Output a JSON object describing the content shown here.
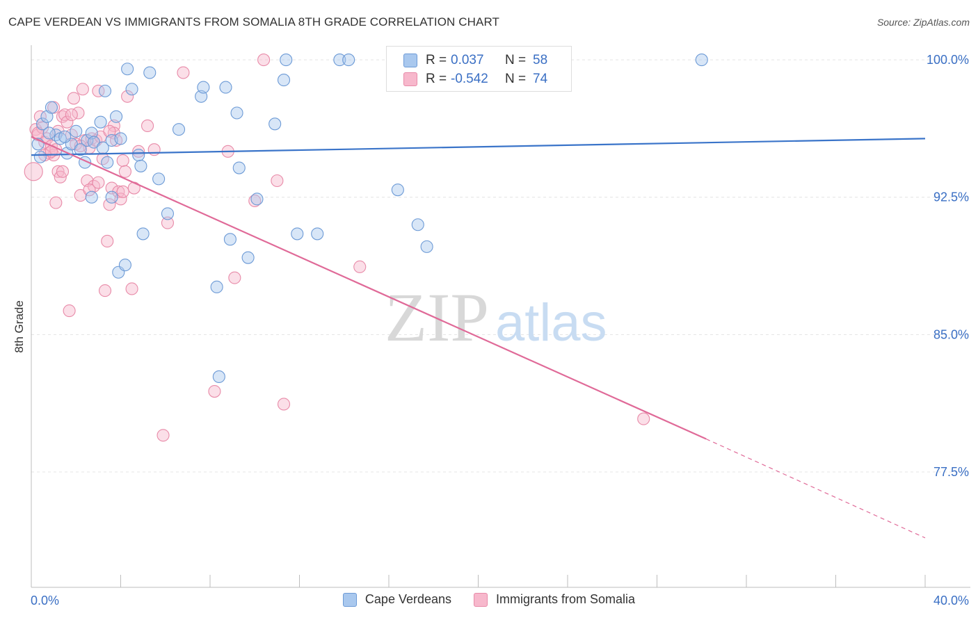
{
  "header": {
    "title": "CAPE VERDEAN VS IMMIGRANTS FROM SOMALIA 8TH GRADE CORRELATION CHART",
    "source": "Source: ZipAtlas.com"
  },
  "legend_box": {
    "rows": [
      {
        "r_label": "R =",
        "r_value": "0.037",
        "n_label": "N =",
        "n_value": "58"
      },
      {
        "r_label": "R =",
        "r_value": "-0.542",
        "n_label": "N =",
        "n_value": "74"
      }
    ]
  },
  "watermark": {
    "zip": "ZIP",
    "atlas": "atlas"
  },
  "colors": {
    "blue_fill": "#a9c8ee",
    "blue_stroke": "#6c9ad6",
    "blue_line": "#3a74c9",
    "pink_fill": "#f7b8cc",
    "pink_stroke": "#e88aa8",
    "pink_line": "#e06a98",
    "tick_label": "#3a6fc4",
    "grid": "#e4e4e4"
  },
  "chart_data": {
    "type": "scatter",
    "title": "CAPE VERDEAN VS IMMIGRANTS FROM SOMALIA 8TH GRADE CORRELATION CHART",
    "xlabel": "",
    "ylabel": "8th Grade",
    "xlim": [
      0,
      40
    ],
    "ylim": [
      71.2,
      100.8
    ],
    "x_tick_labels": [
      "0.0%",
      "40.0%"
    ],
    "y_ticks": [
      77.5,
      85.0,
      92.5,
      100.0
    ],
    "y_tick_labels": [
      "77.5%",
      "85.0%",
      "92.5%",
      "100.0%"
    ],
    "grid": true,
    "legend_position": "bottom",
    "series": [
      {
        "name": "Cape Verdeans",
        "color": "blue",
        "r": 0.037,
        "n": 58,
        "trend": {
          "x0": 0,
          "y0": 94.8,
          "x1": 40,
          "y1": 95.7
        },
        "points": [
          [
            0.3,
            95.4
          ],
          [
            0.5,
            96.5
          ],
          [
            0.7,
            96.9
          ],
          [
            0.9,
            97.4
          ],
          [
            1.1,
            95.9
          ],
          [
            1.3,
            95.7
          ],
          [
            1.6,
            94.9
          ],
          [
            1.8,
            95.4
          ],
          [
            2.0,
            96.1
          ],
          [
            2.2,
            95.1
          ],
          [
            2.4,
            94.4
          ],
          [
            2.5,
            95.6
          ],
          [
            2.7,
            96.0
          ],
          [
            2.7,
            92.5
          ],
          [
            2.8,
            95.5
          ],
          [
            3.1,
            96.6
          ],
          [
            3.2,
            95.2
          ],
          [
            3.3,
            98.3
          ],
          [
            3.4,
            94.4
          ],
          [
            3.6,
            95.6
          ],
          [
            3.6,
            92.5
          ],
          [
            3.8,
            96.9
          ],
          [
            3.9,
            88.4
          ],
          [
            4.0,
            95.7
          ],
          [
            4.2,
            88.8
          ],
          [
            4.3,
            99.5
          ],
          [
            4.5,
            98.4
          ],
          [
            4.8,
            94.8
          ],
          [
            4.9,
            94.2
          ],
          [
            5.0,
            90.5
          ],
          [
            5.3,
            99.3
          ],
          [
            5.7,
            93.5
          ],
          [
            6.1,
            91.6
          ],
          [
            6.6,
            96.2
          ],
          [
            7.6,
            98.0
          ],
          [
            7.7,
            98.5
          ],
          [
            8.3,
            87.6
          ],
          [
            8.4,
            82.7
          ],
          [
            8.7,
            98.5
          ],
          [
            8.9,
            90.2
          ],
          [
            9.2,
            97.1
          ],
          [
            9.3,
            94.1
          ],
          [
            9.7,
            89.2
          ],
          [
            10.1,
            92.4
          ],
          [
            10.9,
            96.5
          ],
          [
            11.3,
            98.9
          ],
          [
            11.4,
            100.0
          ],
          [
            11.9,
            90.5
          ],
          [
            12.8,
            90.5
          ],
          [
            13.8,
            100.0
          ],
          [
            14.2,
            100.0
          ],
          [
            16.4,
            92.9
          ],
          [
            17.3,
            91.0
          ],
          [
            17.7,
            89.8
          ],
          [
            30.0,
            100.0
          ],
          [
            0.4,
            94.7
          ],
          [
            0.8,
            96.0
          ],
          [
            1.5,
            95.8
          ]
        ]
      },
      {
        "name": "Immigrants from Somalia",
        "color": "pink",
        "r": -0.542,
        "n": 74,
        "trend": {
          "x0": 0,
          "y0": 95.8,
          "x1": 30.2,
          "y1": 79.3,
          "dash_x1": 40,
          "dash_y1": 73.9
        },
        "points": [
          [
            0.1,
            93.9
          ],
          [
            0.2,
            96.2
          ],
          [
            0.3,
            95.9
          ],
          [
            0.4,
            96.9
          ],
          [
            0.5,
            96.3
          ],
          [
            0.6,
            95.5
          ],
          [
            0.7,
            95.7
          ],
          [
            0.8,
            94.9
          ],
          [
            0.9,
            95.3
          ],
          [
            1.0,
            97.4
          ],
          [
            1.0,
            94.8
          ],
          [
            1.1,
            95.1
          ],
          [
            1.1,
            92.2
          ],
          [
            1.2,
            93.9
          ],
          [
            1.3,
            93.6
          ],
          [
            1.4,
            96.9
          ],
          [
            1.4,
            93.9
          ],
          [
            1.5,
            97.0
          ],
          [
            1.6,
            96.6
          ],
          [
            1.7,
            86.3
          ],
          [
            1.8,
            95.9
          ],
          [
            1.9,
            97.9
          ],
          [
            2.0,
            95.4
          ],
          [
            2.1,
            97.1
          ],
          [
            2.2,
            92.6
          ],
          [
            2.3,
            98.4
          ],
          [
            2.4,
            95.6
          ],
          [
            2.5,
            93.4
          ],
          [
            2.6,
            95.2
          ],
          [
            2.7,
            95.7
          ],
          [
            2.8,
            93.1
          ],
          [
            2.9,
            95.6
          ],
          [
            3.0,
            98.3
          ],
          [
            3.1,
            95.8
          ],
          [
            3.2,
            94.6
          ],
          [
            3.3,
            87.4
          ],
          [
            3.4,
            90.1
          ],
          [
            3.5,
            92.1
          ],
          [
            3.6,
            93.0
          ],
          [
            3.7,
            96.4
          ],
          [
            3.7,
            96.0
          ],
          [
            3.8,
            95.6
          ],
          [
            3.9,
            92.8
          ],
          [
            4.0,
            92.4
          ],
          [
            4.1,
            94.5
          ],
          [
            4.1,
            92.8
          ],
          [
            4.2,
            93.9
          ],
          [
            4.3,
            98.0
          ],
          [
            4.5,
            87.5
          ],
          [
            4.8,
            95.0
          ],
          [
            5.2,
            96.4
          ],
          [
            5.5,
            95.1
          ],
          [
            5.9,
            79.5
          ],
          [
            6.1,
            91.1
          ],
          [
            6.8,
            99.3
          ],
          [
            8.2,
            81.9
          ],
          [
            8.8,
            95.0
          ],
          [
            9.1,
            88.1
          ],
          [
            10.0,
            92.3
          ],
          [
            10.4,
            100.0
          ],
          [
            11.0,
            93.4
          ],
          [
            11.3,
            81.2
          ],
          [
            14.7,
            88.7
          ],
          [
            27.4,
            80.4
          ],
          [
            0.3,
            96.0
          ],
          [
            0.6,
            94.8
          ],
          [
            1.2,
            96.1
          ],
          [
            1.8,
            97.0
          ],
          [
            2.6,
            92.9
          ],
          [
            3.0,
            93.3
          ],
          [
            3.5,
            96.1
          ],
          [
            4.6,
            93.0
          ],
          [
            0.9,
            95.0
          ],
          [
            2.2,
            95.3
          ]
        ]
      }
    ]
  }
}
